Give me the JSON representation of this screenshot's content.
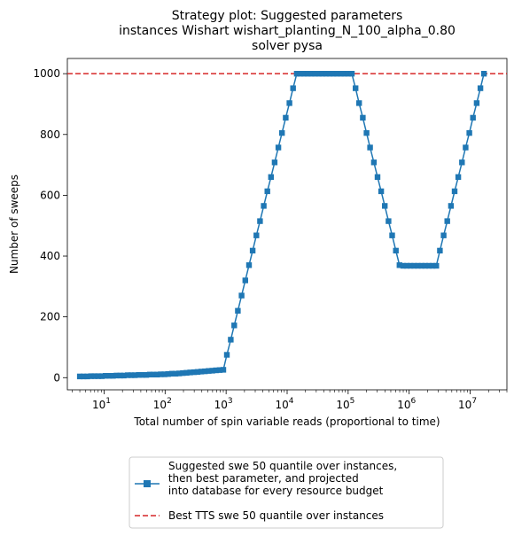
{
  "chart_data": {
    "type": "line",
    "title_lines": [
      "Strategy plot: Suggested parameters",
      "instances Wishart wishart_planting_N_100_alpha_0.80",
      "solver pysa"
    ],
    "xlabel": "Total number of spin variable reads (proportional to time)",
    "ylabel": "Number of sweeps",
    "x_scale": "log",
    "xlim": [
      2.5,
      40000000
    ],
    "ylim": [
      -40,
      1050
    ],
    "x_ticks": [
      {
        "exp": 1,
        "label": "10",
        "sup": "1"
      },
      {
        "exp": 2,
        "label": "10",
        "sup": "2"
      },
      {
        "exp": 3,
        "label": "10",
        "sup": "3"
      },
      {
        "exp": 4,
        "label": "10",
        "sup": "4"
      },
      {
        "exp": 5,
        "label": "10",
        "sup": "5"
      },
      {
        "exp": 6,
        "label": "10",
        "sup": "6"
      },
      {
        "exp": 7,
        "label": "10",
        "sup": "7"
      }
    ],
    "y_ticks": [
      0,
      200,
      400,
      600,
      800,
      1000
    ],
    "grid": false,
    "legend_position": "below",
    "series": [
      {
        "name": "Suggested swe 50 quantile over instances,\n  then best parameter, and projected\n  into database for every resource budget",
        "style": "line-square-markers",
        "color": "#1f77b4",
        "points": [
          [
            4,
            4
          ],
          [
            4.6,
            4
          ],
          [
            5.3,
            4
          ],
          [
            6.1,
            5
          ],
          [
            7,
            5
          ],
          [
            8,
            5
          ],
          [
            9.2,
            5
          ],
          [
            10.6,
            6
          ],
          [
            12.2,
            6
          ],
          [
            14,
            6
          ],
          [
            16,
            7
          ],
          [
            18.5,
            7
          ],
          [
            21,
            7
          ],
          [
            24.5,
            8
          ],
          [
            28,
            8
          ],
          [
            32,
            8
          ],
          [
            37,
            9
          ],
          [
            42.5,
            9
          ],
          [
            49,
            9
          ],
          [
            56,
            10
          ],
          [
            64.5,
            10
          ],
          [
            74,
            10
          ],
          [
            85,
            11
          ],
          [
            98,
            11
          ],
          [
            112,
            12
          ],
          [
            129,
            13
          ],
          [
            148,
            13
          ],
          [
            170,
            14
          ],
          [
            196,
            15
          ],
          [
            225,
            16
          ],
          [
            258,
            17
          ],
          [
            297,
            18
          ],
          [
            341,
            19
          ],
          [
            392,
            20
          ],
          [
            450,
            21
          ],
          [
            517,
            22
          ],
          [
            594,
            23
          ],
          [
            682,
            24
          ],
          [
            784,
            25
          ],
          [
            900,
            26
          ],
          [
            1030,
            75
          ],
          [
            1190,
            125
          ],
          [
            1360,
            172
          ],
          [
            1560,
            220
          ],
          [
            1790,
            270
          ],
          [
            2060,
            320
          ],
          [
            2370,
            370
          ],
          [
            2720,
            418
          ],
          [
            3130,
            468
          ],
          [
            3590,
            515
          ],
          [
            4130,
            565
          ],
          [
            4740,
            613
          ],
          [
            5440,
            660
          ],
          [
            6250,
            708
          ],
          [
            7180,
            757
          ],
          [
            8250,
            805
          ],
          [
            9480,
            855
          ],
          [
            10900,
            903
          ],
          [
            12500,
            952
          ],
          [
            14400,
            1000
          ],
          [
            16500,
            1000
          ],
          [
            19000,
            1000
          ],
          [
            21800,
            1000
          ],
          [
            25000,
            1000
          ],
          [
            28700,
            1000
          ],
          [
            33000,
            1000
          ],
          [
            37900,
            1000
          ],
          [
            43500,
            1000
          ],
          [
            50000,
            1000
          ],
          [
            57400,
            1000
          ],
          [
            66000,
            1000
          ],
          [
            75800,
            1000
          ],
          [
            87000,
            1000
          ],
          [
            100000,
            1000
          ],
          [
            115000,
            1000
          ],
          [
            132000,
            952
          ],
          [
            151000,
            903
          ],
          [
            174000,
            855
          ],
          [
            200000,
            805
          ],
          [
            229000,
            757
          ],
          [
            264000,
            708
          ],
          [
            303000,
            660
          ],
          [
            348000,
            613
          ],
          [
            399000,
            565
          ],
          [
            459000,
            515
          ],
          [
            527000,
            468
          ],
          [
            605000,
            418
          ],
          [
            695000,
            370
          ],
          [
            798000,
            368
          ],
          [
            917000,
            368
          ],
          [
            1050000,
            368
          ],
          [
            1210000,
            368
          ],
          [
            1390000,
            368
          ],
          [
            1600000,
            368
          ],
          [
            1830000,
            368
          ],
          [
            2110000,
            368
          ],
          [
            2420000,
            368
          ],
          [
            2780000,
            368
          ],
          [
            3190000,
            418
          ],
          [
            3670000,
            468
          ],
          [
            4210000,
            515
          ],
          [
            4840000,
            565
          ],
          [
            5560000,
            613
          ],
          [
            6380000,
            660
          ],
          [
            7330000,
            708
          ],
          [
            8420000,
            757
          ],
          [
            9680000,
            805
          ],
          [
            11100000,
            855
          ],
          [
            12800000,
            903
          ],
          [
            14700000,
            952
          ],
          [
            16800000,
            1000
          ]
        ]
      },
      {
        "name": "Best TTS swe 50 quantile over instances",
        "style": "dashed-hline",
        "color": "#d62728",
        "value": 1000
      }
    ]
  }
}
